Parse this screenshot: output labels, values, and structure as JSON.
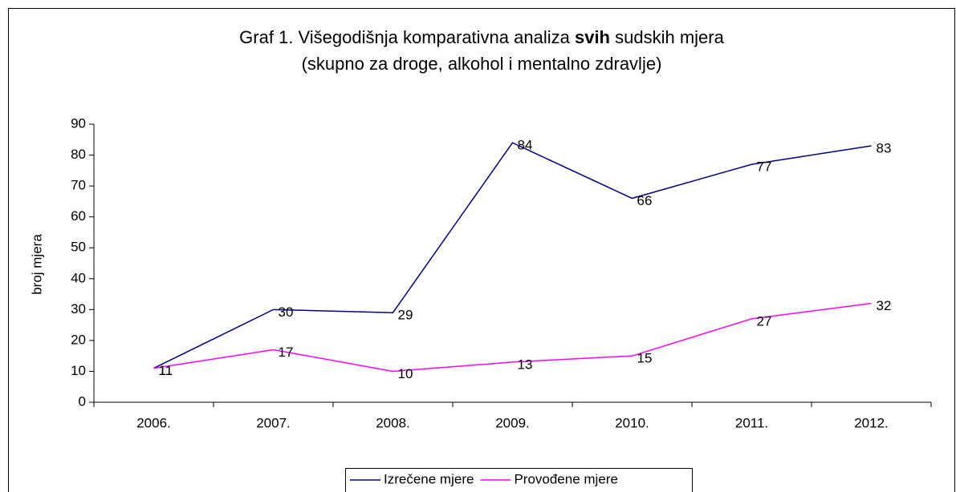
{
  "chart_data": {
    "type": "line",
    "title": [
      "Graf 1. Višegodišnja komparativna analiza ",
      "svih",
      " sudskih mjera"
    ],
    "subtitle": "(skupno za droge, alkohol i mentalno zdravlje)",
    "y_label": "broj mjera",
    "categories": [
      "2006.",
      "2007.",
      "2008.",
      "2009.",
      "2010.",
      "2011.",
      "2012."
    ],
    "series": [
      {
        "name": "Izrečene mjere",
        "color": "#000080",
        "values": [
          11,
          30,
          29,
          84,
          66,
          77,
          83
        ]
      },
      {
        "name": "Provođene mjere",
        "color": "#ff00ff",
        "values": [
          11,
          17,
          10,
          13,
          15,
          27,
          32
        ]
      }
    ],
    "ylim": [
      0,
      90
    ],
    "yticks": [
      0,
      10,
      20,
      30,
      40,
      50,
      60,
      70,
      80,
      90
    ],
    "grid": false,
    "legend": "bottom"
  }
}
